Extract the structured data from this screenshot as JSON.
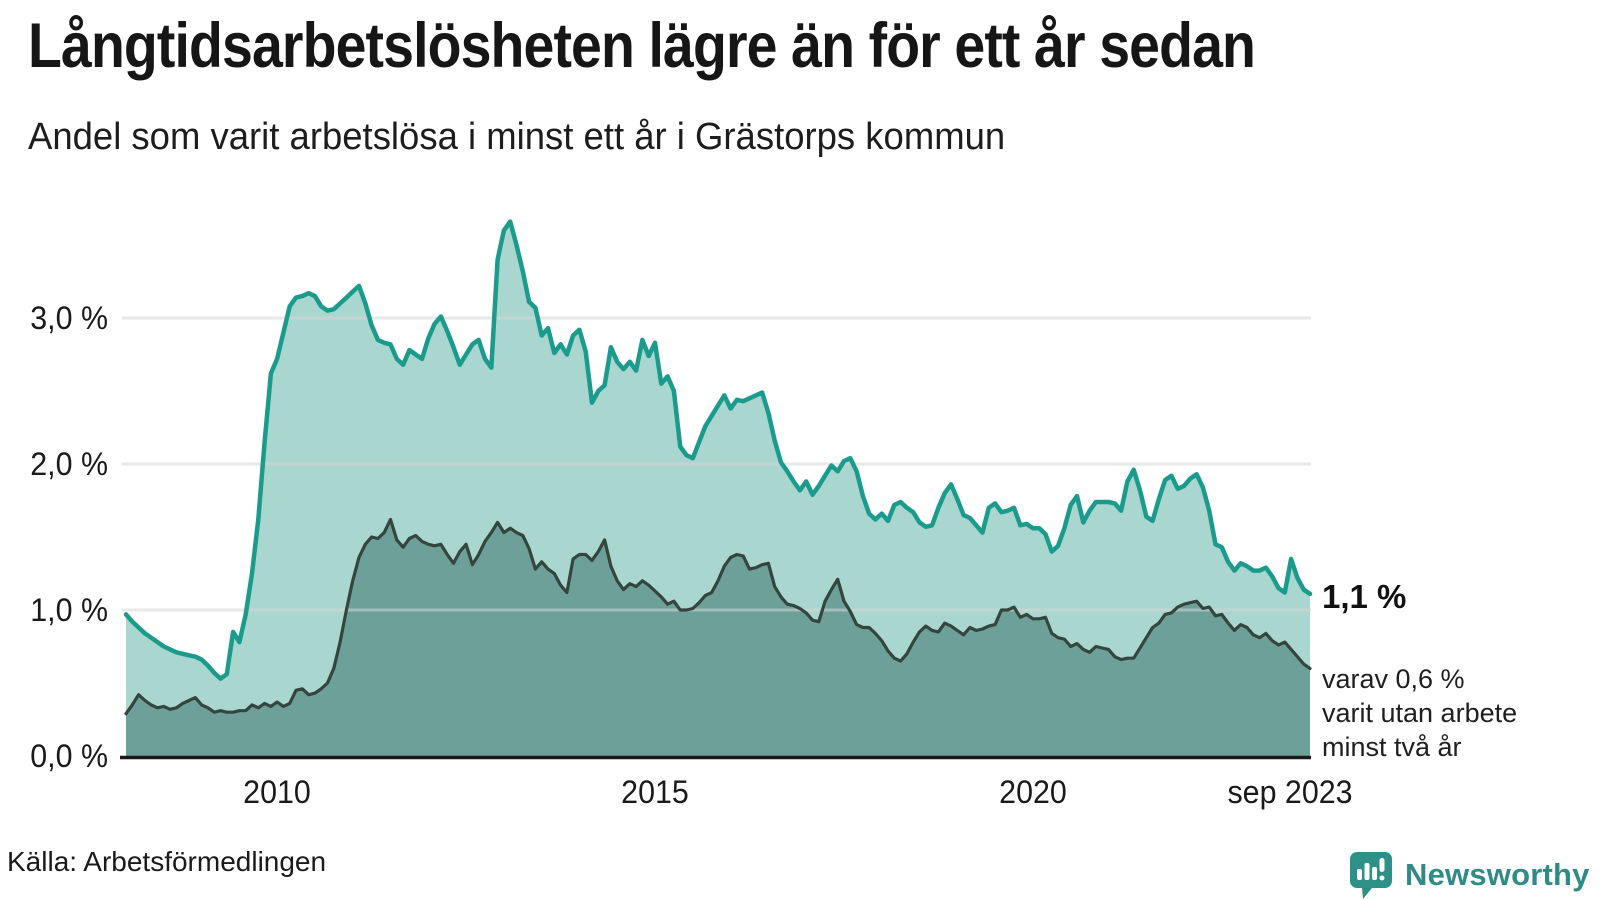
{
  "header": {
    "title": "Långtidsarbetsløsheten lägre än för ett år sedan",
    "subtitle": "Andel som varit arbetslösa i minst ett år i Grästorps kommun"
  },
  "annotation": {
    "value_label": "1,1 %",
    "detail_lines": [
      "varav 0,6 %",
      "varit utan arbete",
      "minst två år"
    ]
  },
  "source": "Källa: Arbetsförmedlingen",
  "brand": {
    "name": "Newsworthy",
    "color": "#2e8c85",
    "icon_color": "#2e9187",
    "icon": "bar-chart-speech-bubble"
  },
  "colors": {
    "series1_line": "#1a9b8c",
    "series1_fill": "#aad6d0",
    "series2_line": "#344540",
    "series2_fill": "#6ea09a",
    "grid": "#d6d6d6",
    "axis": "#1a1a1a",
    "text": "#1a1a1a"
  },
  "chart_data": {
    "type": "area",
    "title": "Långtidsarbetslösheten lägre än för ett år sedan",
    "subtitle": "Andel som varit arbetslösa i minst ett år i Grästorps kommun",
    "x_unit": "month",
    "x_range": [
      "2008-01",
      "2023-09"
    ],
    "ylim": [
      0,
      3.8
    ],
    "grid": "horizontal",
    "legend": "none",
    "x_ticks": [
      {
        "label": "2010",
        "month": 24
      },
      {
        "label": "2015",
        "month": 84
      },
      {
        "label": "2020",
        "month": 144
      },
      {
        "label": "sep 2023",
        "month": 188,
        "label_x": 1290
      }
    ],
    "y_ticks": [
      {
        "label": "0,0 %",
        "value": 0
      },
      {
        "label": "1,0 %",
        "value": 1
      },
      {
        "label": "2,0 %",
        "value": 2
      },
      {
        "label": "3,0 %",
        "value": 3
      }
    ],
    "series": [
      {
        "name": "arbetslösa minst ett år",
        "slug": "minst-ett-ar",
        "line_color": "#1a9b8c",
        "fill_color": "#aad6d0",
        "line_width": 4.5,
        "end_value_label": "1,1 %",
        "values": [
          0.97,
          0.92,
          0.88,
          0.84,
          0.81,
          0.78,
          0.75,
          0.73,
          0.71,
          0.7,
          0.69,
          0.68,
          0.66,
          0.62,
          0.57,
          0.53,
          0.56,
          0.85,
          0.78,
          0.97,
          1.25,
          1.62,
          2.15,
          2.62,
          2.72,
          2.9,
          3.08,
          3.14,
          3.15,
          3.17,
          3.15,
          3.08,
          3.05,
          3.06,
          3.1,
          3.14,
          3.18,
          3.22,
          3.1,
          2.95,
          2.85,
          2.83,
          2.82,
          2.72,
          2.68,
          2.78,
          2.75,
          2.72,
          2.86,
          2.96,
          3.01,
          2.91,
          2.8,
          2.68,
          2.75,
          2.82,
          2.85,
          2.72,
          2.66,
          3.4,
          3.6,
          3.66,
          3.5,
          3.32,
          3.11,
          3.07,
          2.88,
          2.93,
          2.76,
          2.82,
          2.75,
          2.88,
          2.92,
          2.77,
          2.42,
          2.5,
          2.54,
          2.8,
          2.7,
          2.65,
          2.7,
          2.64,
          2.85,
          2.74,
          2.83,
          2.55,
          2.6,
          2.5,
          2.12,
          2.06,
          2.04,
          2.15,
          2.26,
          2.33,
          2.4,
          2.47,
          2.38,
          2.44,
          2.43,
          2.45,
          2.47,
          2.49,
          2.35,
          2.16,
          2.01,
          1.95,
          1.88,
          1.82,
          1.88,
          1.79,
          1.85,
          1.92,
          1.99,
          1.95,
          2.02,
          2.04,
          1.95,
          1.78,
          1.66,
          1.62,
          1.66,
          1.61,
          1.72,
          1.74,
          1.7,
          1.67,
          1.6,
          1.57,
          1.58,
          1.7,
          1.8,
          1.86,
          1.76,
          1.65,
          1.63,
          1.58,
          1.53,
          1.7,
          1.73,
          1.67,
          1.68,
          1.7,
          1.58,
          1.59,
          1.56,
          1.56,
          1.52,
          1.4,
          1.44,
          1.56,
          1.72,
          1.78,
          1.6,
          1.68,
          1.74,
          1.74,
          1.74,
          1.73,
          1.68,
          1.88,
          1.96,
          1.82,
          1.64,
          1.61,
          1.76,
          1.89,
          1.92,
          1.83,
          1.85,
          1.9,
          1.93,
          1.84,
          1.68,
          1.45,
          1.43,
          1.33,
          1.27,
          1.32,
          1.3,
          1.27,
          1.27,
          1.29,
          1.23,
          1.15,
          1.12,
          1.35,
          1.22,
          1.14,
          1.11
        ]
      },
      {
        "name": "arbetslösa minst två år",
        "slug": "minst-tva-ar",
        "line_color": "#344540",
        "fill_color": "#6ea09a",
        "line_width": 3.2,
        "end_value_label": "0,6 %",
        "values": [
          0.29,
          0.35,
          0.42,
          0.38,
          0.35,
          0.33,
          0.34,
          0.32,
          0.33,
          0.36,
          0.38,
          0.4,
          0.35,
          0.33,
          0.3,
          0.31,
          0.3,
          0.3,
          0.31,
          0.31,
          0.35,
          0.33,
          0.36,
          0.34,
          0.37,
          0.34,
          0.36,
          0.45,
          0.46,
          0.42,
          0.43,
          0.46,
          0.5,
          0.6,
          0.78,
          1.0,
          1.2,
          1.36,
          1.45,
          1.5,
          1.49,
          1.53,
          1.62,
          1.48,
          1.43,
          1.49,
          1.51,
          1.47,
          1.45,
          1.44,
          1.45,
          1.38,
          1.32,
          1.4,
          1.45,
          1.31,
          1.38,
          1.47,
          1.53,
          1.6,
          1.53,
          1.56,
          1.53,
          1.51,
          1.42,
          1.28,
          1.33,
          1.28,
          1.25,
          1.17,
          1.12,
          1.35,
          1.38,
          1.38,
          1.34,
          1.4,
          1.48,
          1.3,
          1.2,
          1.14,
          1.18,
          1.16,
          1.2,
          1.17,
          1.13,
          1.09,
          1.04,
          1.06,
          1.0,
          1.0,
          1.01,
          1.05,
          1.1,
          1.12,
          1.2,
          1.3,
          1.36,
          1.38,
          1.37,
          1.28,
          1.29,
          1.31,
          1.32,
          1.16,
          1.09,
          1.04,
          1.03,
          1.01,
          0.98,
          0.93,
          0.92,
          1.06,
          1.14,
          1.21,
          1.06,
          0.99,
          0.9,
          0.88,
          0.88,
          0.84,
          0.79,
          0.72,
          0.67,
          0.65,
          0.7,
          0.78,
          0.85,
          0.89,
          0.86,
          0.85,
          0.91,
          0.89,
          0.86,
          0.83,
          0.88,
          0.86,
          0.87,
          0.89,
          0.9,
          1.0,
          1.0,
          1.02,
          0.95,
          0.97,
          0.94,
          0.94,
          0.95,
          0.84,
          0.81,
          0.8,
          0.75,
          0.77,
          0.73,
          0.71,
          0.75,
          0.74,
          0.73,
          0.68,
          0.66,
          0.67,
          0.67,
          0.74,
          0.81,
          0.88,
          0.91,
          0.97,
          0.98,
          1.02,
          1.04,
          1.05,
          1.06,
          1.01,
          1.02,
          0.96,
          0.97,
          0.91,
          0.86,
          0.9,
          0.88,
          0.83,
          0.81,
          0.84,
          0.79,
          0.76,
          0.78,
          0.73,
          0.68,
          0.63,
          0.6
        ]
      }
    ]
  }
}
